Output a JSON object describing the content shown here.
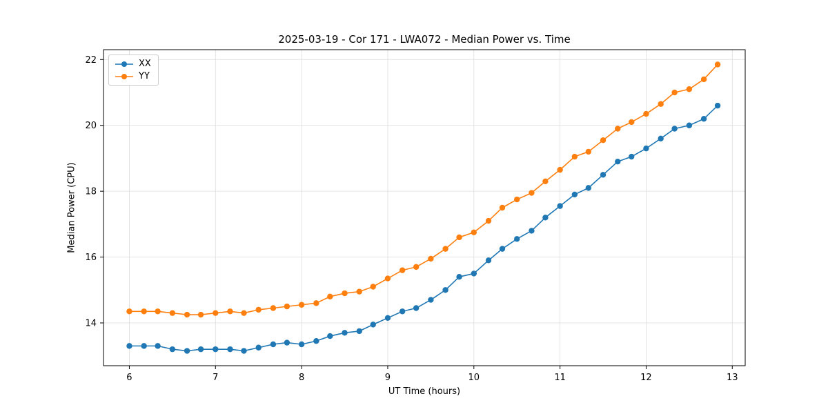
{
  "chart_data": {
    "type": "line",
    "title": "2025-03-19 - Cor 171 - LWA072 - Median Power vs. Time",
    "xlabel": "UT Time (hours)",
    "ylabel": "Median Power (CPU)",
    "xlim": [
      5.7,
      13.15
    ],
    "ylim": [
      12.7,
      22.3
    ],
    "xticks": [
      6,
      7,
      8,
      9,
      10,
      11,
      12,
      13
    ],
    "yticks": [
      14,
      16,
      18,
      20,
      22
    ],
    "grid": true,
    "legend_position": "upper-left",
    "marker": "circle",
    "x": [
      6.0,
      6.17,
      6.33,
      6.5,
      6.67,
      6.83,
      7.0,
      7.17,
      7.33,
      7.5,
      7.67,
      7.83,
      8.0,
      8.17,
      8.33,
      8.5,
      8.67,
      8.83,
      9.0,
      9.17,
      9.33,
      9.5,
      9.67,
      9.83,
      10.0,
      10.17,
      10.33,
      10.5,
      10.67,
      10.83,
      11.0,
      11.17,
      11.33,
      11.5,
      11.67,
      11.83,
      12.0,
      12.17,
      12.33,
      12.5,
      12.67,
      12.83
    ],
    "series": [
      {
        "name": "XX",
        "color": "#1f77b4",
        "values": [
          13.3,
          13.3,
          13.3,
          13.2,
          13.15,
          13.2,
          13.2,
          13.2,
          13.15,
          13.25,
          13.35,
          13.4,
          13.35,
          13.45,
          13.6,
          13.7,
          13.75,
          13.95,
          14.15,
          14.35,
          14.45,
          14.7,
          15.0,
          15.4,
          15.5,
          15.9,
          16.25,
          16.55,
          16.8,
          17.2,
          17.55,
          17.9,
          18.1,
          18.5,
          18.9,
          19.05,
          19.3,
          19.6,
          19.9,
          20.0,
          20.2,
          20.6
        ]
      },
      {
        "name": "YY",
        "color": "#ff7f0e",
        "values": [
          14.35,
          14.35,
          14.35,
          14.3,
          14.25,
          14.25,
          14.3,
          14.35,
          14.3,
          14.4,
          14.45,
          14.5,
          14.55,
          14.6,
          14.8,
          14.9,
          14.95,
          15.1,
          15.35,
          15.6,
          15.7,
          15.95,
          16.25,
          16.6,
          16.75,
          17.1,
          17.5,
          17.75,
          17.95,
          18.3,
          18.65,
          19.05,
          19.2,
          19.55,
          19.9,
          20.1,
          20.35,
          20.65,
          21.0,
          21.1,
          21.4,
          21.85
        ]
      }
    ],
    "style": {
      "grid_color": "#e0e0e0",
      "frame_color": "#000000",
      "background": "#ffffff"
    }
  }
}
